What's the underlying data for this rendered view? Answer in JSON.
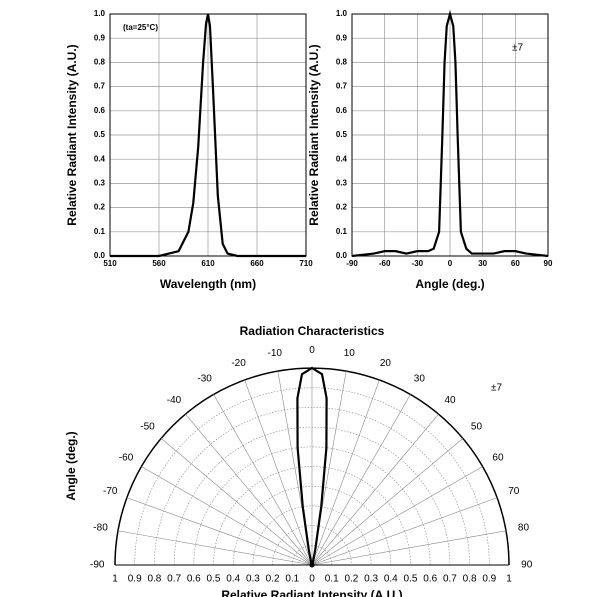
{
  "chart_data": [
    {
      "type": "line",
      "xlabel": "Wavelength (nm)",
      "ylabel": "Relative Radiant Intensity (A.U.)",
      "annotation": "(ta=25°C)",
      "x": [
        510,
        560,
        580,
        590,
        595,
        600,
        605,
        608,
        610,
        612,
        615,
        620,
        625,
        630,
        640,
        660,
        710
      ],
      "series": [
        {
          "name": "",
          "color": "#000000",
          "values": [
            0,
            0,
            0.02,
            0.1,
            0.22,
            0.45,
            0.8,
            0.96,
            1.0,
            0.95,
            0.7,
            0.25,
            0.05,
            0.01,
            0,
            0,
            0
          ]
        }
      ],
      "xlim": [
        510,
        710
      ],
      "xticks": [
        510,
        560,
        610,
        660,
        710
      ],
      "ylim": [
        0,
        1
      ],
      "yticks": [
        {
          "value": 0,
          "label": "0.0"
        },
        0.1,
        0.2,
        0.3,
        0.4,
        0.5,
        0.6,
        0.7,
        0.8,
        0.9,
        {
          "value": 1,
          "label": "1.0"
        }
      ],
      "grid": true
    },
    {
      "type": "line",
      "xlabel": "Angle (deg.)",
      "ylabel": "Relative Radiant Intensity (A.U.)",
      "annotation": "±7",
      "x": [
        -90,
        -70,
        -60,
        -50,
        -40,
        -30,
        -20,
        -15,
        -10,
        -7,
        -5,
        -3,
        0,
        3,
        5,
        7,
        10,
        15,
        20,
        30,
        40,
        50,
        60,
        70,
        90
      ],
      "series": [
        {
          "name": "",
          "color": "#000000",
          "values": [
            0,
            0.01,
            0.02,
            0.02,
            0.01,
            0.02,
            0.02,
            0.03,
            0.1,
            0.5,
            0.8,
            0.95,
            1.0,
            0.95,
            0.8,
            0.5,
            0.1,
            0.03,
            0.01,
            0.01,
            0.01,
            0.02,
            0.02,
            0.01,
            0
          ]
        }
      ],
      "xlim": [
        -90,
        90
      ],
      "xticks": [
        -90,
        -60,
        -30,
        0,
        30,
        60,
        90
      ],
      "ylim": [
        0,
        1
      ],
      "yticks": [
        {
          "value": 0,
          "label": "0.0"
        },
        0.1,
        0.2,
        0.3,
        0.4,
        0.5,
        0.6,
        0.7,
        0.8,
        0.9,
        {
          "value": 1,
          "label": "1.0"
        }
      ],
      "grid": true
    },
    {
      "type": "polar",
      "title": "Radiation Characteristics",
      "xlabel": "Relative Radiant Intensity (A.U.)",
      "ylabel": "Angle (deg.)",
      "annotation": "±7",
      "x": [
        -90,
        -20,
        -12,
        -9,
        -7,
        -5,
        -3,
        0,
        3,
        5,
        7,
        9,
        12,
        20,
        90
      ],
      "series": [
        {
          "name": "",
          "color": "#000000",
          "values": [
            0,
            0.01,
            0.08,
            0.3,
            0.6,
            0.85,
            0.97,
            1.0,
            0.97,
            0.85,
            0.6,
            0.3,
            0.08,
            0.01,
            0
          ]
        }
      ],
      "angle_ticks": [
        -90,
        -80,
        -70,
        -60,
        -50,
        -40,
        -30,
        -20,
        -10,
        0,
        10,
        20,
        30,
        40,
        50,
        60,
        70,
        80,
        90
      ],
      "xlim": [
        -1,
        1
      ],
      "xticks": [
        {
          "value": -1,
          "label": "1"
        },
        {
          "value": -0.9,
          "label": "0.9"
        },
        {
          "value": -0.8,
          "label": "0.8"
        },
        {
          "value": -0.7,
          "label": "0.7"
        },
        {
          "value": -0.6,
          "label": "0.6"
        },
        {
          "value": -0.5,
          "label": "0.5"
        },
        {
          "value": -0.4,
          "label": "0.4"
        },
        {
          "value": -0.3,
          "label": "0.3"
        },
        {
          "value": -0.2,
          "label": "0.2"
        },
        {
          "value": -0.1,
          "label": "0.1"
        },
        0,
        0.1,
        0.2,
        0.3,
        0.4,
        0.5,
        0.6,
        0.7,
        0.8,
        0.9,
        1
      ],
      "grid": true
    }
  ]
}
